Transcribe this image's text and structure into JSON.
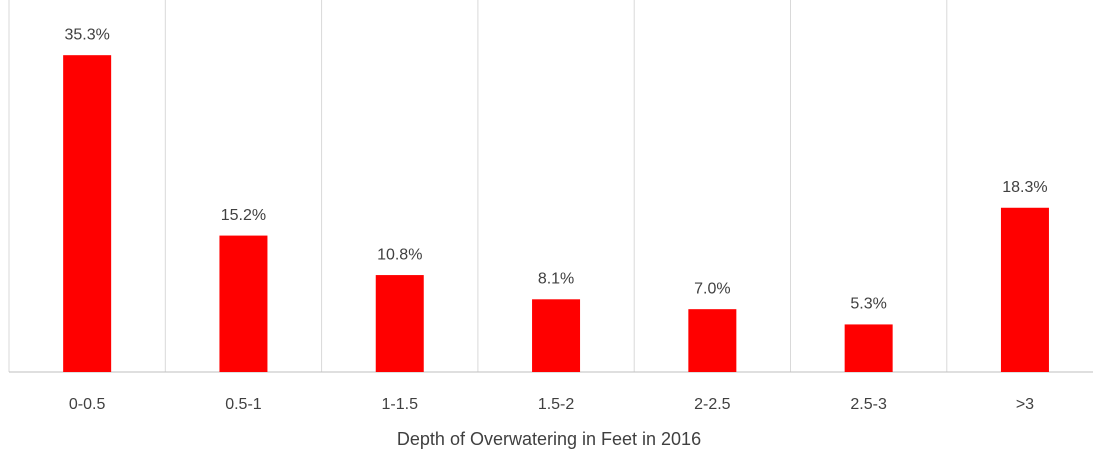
{
  "chart_data": {
    "type": "bar",
    "x_label": "Depth of Overwatering in Feet in 2016",
    "categories": [
      "0-0.5",
      "0.5-1",
      "1-1.5",
      "1.5-2",
      "2-2.5",
      "2.5-3",
      ">3"
    ],
    "values": [
      35.3,
      15.2,
      10.8,
      8.1,
      7.0,
      5.3,
      18.3
    ],
    "value_labels": [
      "35.3%",
      "15.2%",
      "10.8%",
      "8.1%",
      "7.0%",
      "5.3%",
      "18.3%"
    ],
    "color": "#ff0000",
    "ylim": [
      0,
      40
    ],
    "grid": true
  }
}
